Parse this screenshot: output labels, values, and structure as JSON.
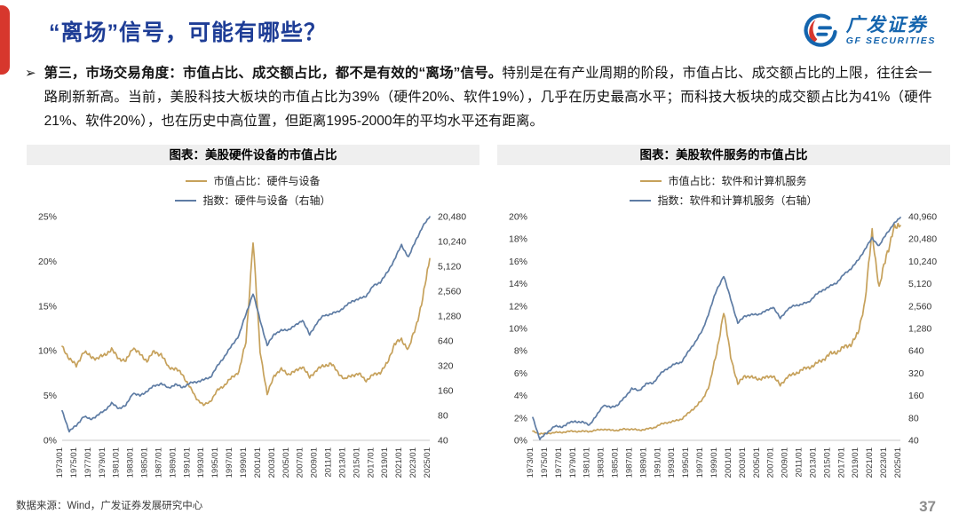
{
  "header": {
    "title": "“离场”信号，可能有哪些？",
    "logo": {
      "name_cn": "广发证券",
      "name_en": "GF SECURITIES"
    }
  },
  "bullet": {
    "marker": "➢",
    "bold_text": "第三，市场交易角度：市值占比、成交额占比，都不是有效的“离场”信号。",
    "normal_text": "特别是在有产业周期的阶段，市值占比、成交额占比的上限，往往会一路刷新新高。当前，美股科技大板块的市值占比为39%（硬件20%、软件19%），几乎在历史最高水平；而科技大板块的成交额占比为41%（硬件21%、软件20%），也在历史中高位置，但距离1995-2000年的平均水平还有距离。"
  },
  "footer": {
    "source": "数据来源：Wind，广发证券发展研究中心",
    "page_number": "37"
  },
  "colors": {
    "accent_red": "#D7372D",
    "title_blue": "#1E3D96",
    "logo_blue": "#1565AE",
    "line_tan": "#C6A15B",
    "line_blue": "#5E7CA4",
    "title_band_gray": "#EFEFEF"
  },
  "chart_data": [
    {
      "type": "line",
      "title": "图表：美股硬件设备的市值占比",
      "legend_position": "top",
      "grid": false,
      "x": [
        1973,
        1974,
        1975,
        1976,
        1977,
        1978,
        1979,
        1980,
        1981,
        1982,
        1983,
        1984,
        1985,
        1986,
        1987,
        1988,
        1989,
        1990,
        1991,
        1992,
        1993,
        1994,
        1995,
        1996,
        1997,
        1998,
        1999,
        2000,
        2001,
        2002,
        2003,
        2004,
        2005,
        2006,
        2007,
        2008,
        2009,
        2010,
        2011,
        2012,
        2013,
        2014,
        2015,
        2016,
        2017,
        2018,
        2019,
        2020,
        2021,
        2022,
        2023,
        2024,
        2025
      ],
      "x_tick_labels": [
        "1973/01",
        "1975/01",
        "1977/01",
        "1979/01",
        "1981/01",
        "1983/01",
        "1985/01",
        "1987/01",
        "1989/01",
        "1991/01",
        "1993/01",
        "1995/01",
        "1997/01",
        "1999/01",
        "2001/01",
        "2003/01",
        "2005/01",
        "2007/01",
        "2009/01",
        "2011/01",
        "2013/01",
        "2015/01",
        "2017/01",
        "2019/01",
        "2021/01",
        "2023/01",
        "2025/01"
      ],
      "left_axis": {
        "min": 0,
        "max": 25,
        "tick_labels": [
          "0%",
          "5%",
          "10%",
          "15%",
          "20%",
          "25%"
        ]
      },
      "right_axis": {
        "scale": "log2",
        "min": 40,
        "max": 20480,
        "tick_labels": [
          "40",
          "80",
          "160",
          "320",
          "640",
          "1,280",
          "2,560",
          "5,120",
          "10,240",
          "20,480"
        ]
      },
      "series": [
        {
          "name": "市值占比：硬件与设备",
          "axis": "left",
          "color": "#C6A15B",
          "values": [
            10.4,
            9.2,
            8.3,
            9.9,
            9.4,
            9.1,
            9.6,
            10.1,
            9.2,
            8.8,
            10.4,
            9.6,
            8.9,
            9.9,
            9.6,
            8.2,
            8.0,
            7.4,
            6.0,
            4.7,
            3.9,
            4.4,
            5.6,
            6.2,
            7.0,
            7.7,
            11.0,
            22.3,
            10.0,
            5.1,
            7.3,
            7.9,
            7.4,
            7.7,
            8.3,
            7.0,
            7.9,
            8.3,
            8.6,
            7.6,
            6.8,
            7.3,
            7.4,
            6.7,
            7.3,
            7.6,
            8.6,
            10.8,
            11.2,
            10.2,
            12.6,
            15.8,
            20.3
          ]
        },
        {
          "name": "指数：硬件与设备（右轴）",
          "axis": "right",
          "color": "#5E7CA4",
          "values": [
            90,
            52,
            60,
            78,
            72,
            80,
            92,
            112,
            98,
            105,
            150,
            138,
            158,
            182,
            195,
            172,
            190,
            175,
            195,
            205,
            215,
            235,
            320,
            420,
            560,
            750,
            1350,
            2400,
            1150,
            560,
            780,
            850,
            880,
            980,
            1150,
            760,
            1050,
            1300,
            1350,
            1450,
            1650,
            1950,
            2050,
            2250,
            2950,
            3300,
            4300,
            6200,
            9200,
            6600,
            10500,
            15500,
            20400
          ]
        }
      ]
    },
    {
      "type": "line",
      "title": "图表：美股软件服务的市值占比",
      "legend_position": "top",
      "grid": false,
      "x": [
        1973,
        1974,
        1975,
        1976,
        1977,
        1978,
        1979,
        1980,
        1981,
        1982,
        1983,
        1984,
        1985,
        1986,
        1987,
        1988,
        1989,
        1990,
        1991,
        1992,
        1993,
        1994,
        1995,
        1996,
        1997,
        1998,
        1999,
        2000,
        2001,
        2002,
        2003,
        2004,
        2005,
        2006,
        2007,
        2008,
        2009,
        2010,
        2011,
        2012,
        2013,
        2014,
        2015,
        2016,
        2017,
        2018,
        2019,
        2020,
        2021,
        2022,
        2023,
        2024,
        2025
      ],
      "x_tick_labels": [
        "1973/01",
        "1975/01",
        "1977/01",
        "1979/01",
        "1981/01",
        "1983/01",
        "1985/01",
        "1987/01",
        "1989/01",
        "1991/01",
        "1993/01",
        "1995/01",
        "1997/01",
        "1999/01",
        "2001/01",
        "2003/01",
        "2005/01",
        "2007/01",
        "2009/01",
        "2011/01",
        "2013/01",
        "2015/01",
        "2017/01",
        "2019/01",
        "2021/01",
        "2023/01",
        "2025/01"
      ],
      "left_axis": {
        "min": 0,
        "max": 20,
        "tick_labels": [
          "0%",
          "2%",
          "4%",
          "6%",
          "8%",
          "10%",
          "12%",
          "14%",
          "16%",
          "18%",
          "20%"
        ]
      },
      "right_axis": {
        "scale": "log2",
        "min": 40,
        "max": 40960,
        "tick_labels": [
          "40",
          "80",
          "160",
          "320",
          "640",
          "1,280",
          "2,560",
          "5,120",
          "10,240",
          "20,480",
          "40,960"
        ]
      },
      "series": [
        {
          "name": "市值占比：软件和计算机服务",
          "axis": "left",
          "color": "#C6A15B",
          "values": [
            0.8,
            0.6,
            0.6,
            0.7,
            0.7,
            0.8,
            0.8,
            0.8,
            0.8,
            0.9,
            1.0,
            0.9,
            0.9,
            1.0,
            1.0,
            0.9,
            1.0,
            1.1,
            1.4,
            1.6,
            1.7,
            1.9,
            2.4,
            3.0,
            3.6,
            5.0,
            7.8,
            11.5,
            7.5,
            5.0,
            5.8,
            5.6,
            5.5,
            5.6,
            5.8,
            4.9,
            5.7,
            5.9,
            6.3,
            6.5,
            6.8,
            7.2,
            7.7,
            7.9,
            8.3,
            8.6,
            9.5,
            12.5,
            18.6,
            13.6,
            16.5,
            18.8,
            19.2
          ]
        },
        {
          "name": "指数：软件和计算机服务（右轴）",
          "axis": "right",
          "color": "#5E7CA4",
          "values": [
            80,
            42,
            50,
            62,
            60,
            68,
            72,
            70,
            65,
            85,
            120,
            110,
            120,
            150,
            200,
            185,
            230,
            235,
            310,
            370,
            420,
            450,
            620,
            850,
            1200,
            2200,
            4200,
            6500,
            3200,
            1500,
            1900,
            1950,
            2000,
            2200,
            2500,
            1750,
            2300,
            2600,
            2700,
            2900,
            3600,
            4200,
            4700,
            5300,
            6800,
            8200,
            10500,
            15000,
            21000,
            16500,
            24000,
            32000,
            40000
          ]
        }
      ]
    }
  ]
}
